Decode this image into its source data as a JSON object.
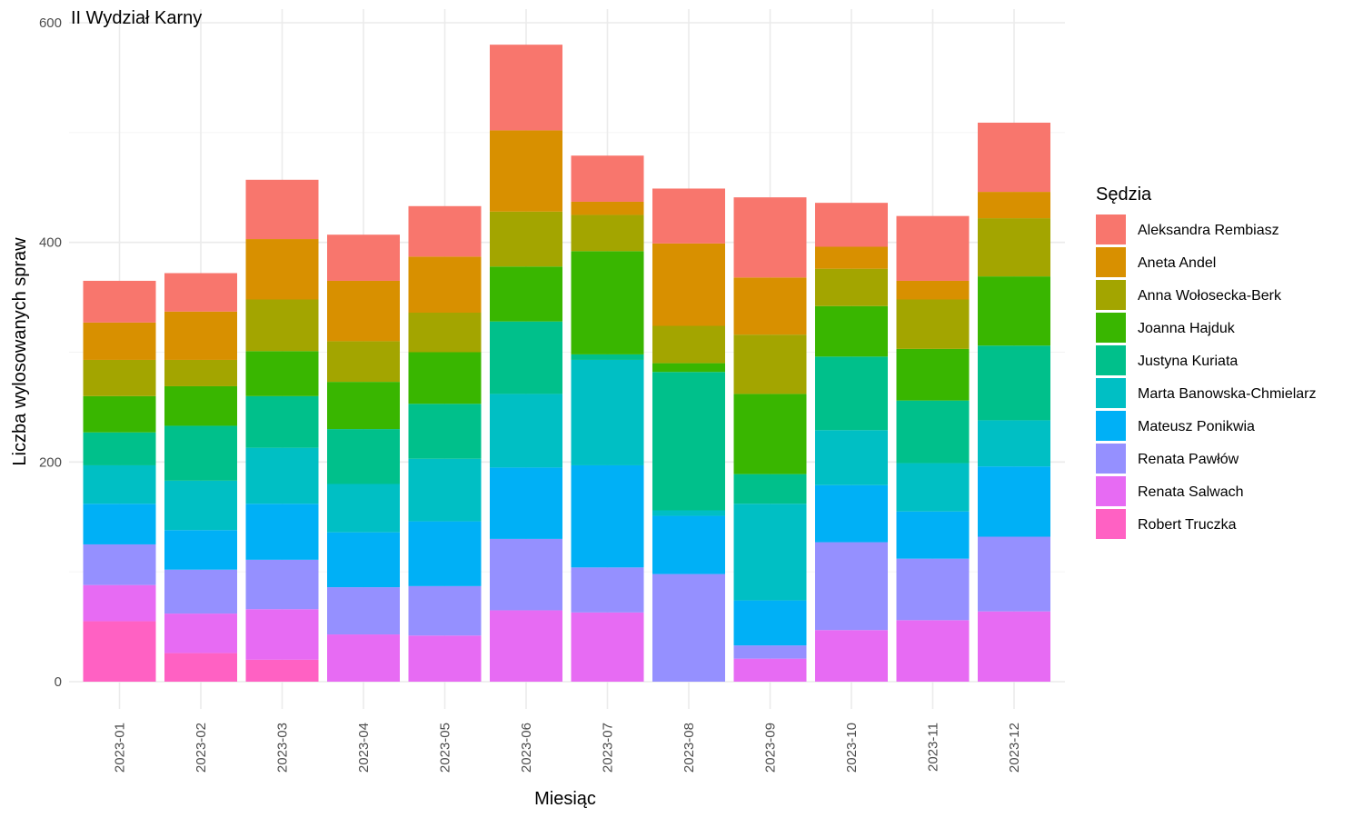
{
  "chart_data": {
    "type": "bar",
    "stacked": true,
    "title": "II Wydział Karny",
    "xlabel": "Miesiąc",
    "ylabel": "Liczba wylosowanych spraw",
    "ylim": [
      0,
      600
    ],
    "y_ticks": [
      0,
      200,
      400,
      600
    ],
    "grid": true,
    "legend_position": "right",
    "legend_title": "Sędzia",
    "categories": [
      "2023-01",
      "2023-02",
      "2023-03",
      "2023-04",
      "2023-05",
      "2023-06",
      "2023-07",
      "2023-08",
      "2023-09",
      "2023-10",
      "2023-11",
      "2023-12"
    ],
    "series": [
      {
        "name": "Robert Truczka",
        "color": "#FF61C3",
        "values": [
          55,
          26,
          20,
          0,
          0,
          0,
          0,
          0,
          0,
          0,
          0,
          0
        ]
      },
      {
        "name": "Renata Salwach",
        "color": "#E76BF3",
        "values": [
          33,
          36,
          46,
          43,
          42,
          65,
          63,
          0,
          21,
          47,
          56,
          64
        ]
      },
      {
        "name": "Renata Pawłów",
        "color": "#9590FF",
        "values": [
          37,
          40,
          45,
          43,
          45,
          65,
          41,
          98,
          12,
          80,
          56,
          68
        ]
      },
      {
        "name": "Mateusz Ponikwia",
        "color": "#00B0F6",
        "values": [
          37,
          36,
          51,
          50,
          59,
          65,
          93,
          53,
          41,
          52,
          43,
          64
        ]
      },
      {
        "name": "Marta Banowska-Chmielarz",
        "color": "#00BFC4",
        "values": [
          35,
          45,
          51,
          44,
          57,
          67,
          96,
          5,
          88,
          50,
          44,
          42
        ]
      },
      {
        "name": "Justyna Kuriata",
        "color": "#00C08B",
        "values": [
          30,
          50,
          47,
          50,
          50,
          66,
          5,
          126,
          27,
          67,
          57,
          68
        ]
      },
      {
        "name": "Joanna Hajduk",
        "color": "#39B600",
        "values": [
          33,
          36,
          41,
          43,
          47,
          50,
          94,
          8,
          73,
          46,
          47,
          63
        ]
      },
      {
        "name": "Anna Wołosecka-Berk",
        "color": "#A3A500",
        "values": [
          33,
          24,
          47,
          37,
          36,
          50,
          33,
          34,
          54,
          34,
          45,
          53
        ]
      },
      {
        "name": "Aneta Andel",
        "color": "#D89000",
        "values": [
          34,
          44,
          55,
          55,
          51,
          74,
          12,
          75,
          52,
          20,
          17,
          24
        ]
      },
      {
        "name": "Aleksandra Rembiasz",
        "color": "#F8766D",
        "values": [
          38,
          35,
          54,
          42,
          46,
          78,
          42,
          50,
          73,
          40,
          59,
          63
        ]
      }
    ]
  }
}
